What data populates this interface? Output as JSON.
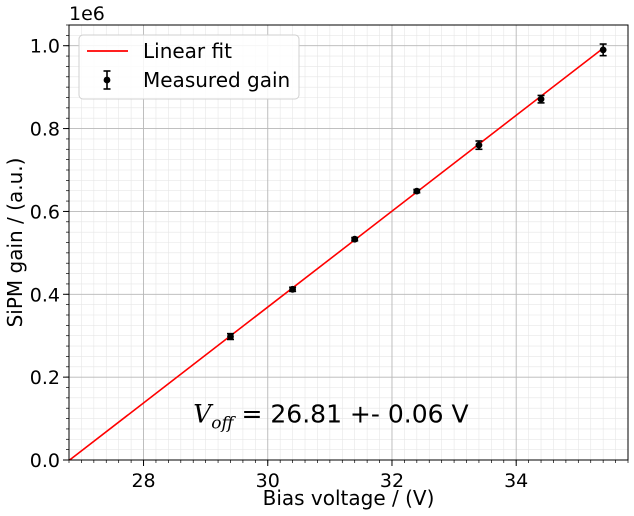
{
  "chart_data": {
    "type": "scatter",
    "title": "",
    "xlabel": "Bias voltage / (V)",
    "ylabel": "SiPM gain / (a.u.)",
    "y_scale_label": "1e6",
    "xlim": [
      26.8,
      35.8
    ],
    "ylim": [
      0.0,
      1.05
    ],
    "x_ticks": [
      28,
      30,
      32,
      34
    ],
    "x_tick_labels": [
      "28",
      "30",
      "32",
      "34"
    ],
    "y_ticks": [
      0.0,
      0.2,
      0.4,
      0.6,
      0.8,
      1.0
    ],
    "y_tick_labels": [
      "0.0",
      "0.2",
      "0.4",
      "0.6",
      "0.8",
      "1.0"
    ],
    "grid": true,
    "minor_grid": true,
    "legend_position": "top-left",
    "series": [
      {
        "name": "Linear fit",
        "kind": "line",
        "color": "#ff0000",
        "x": [
          26.81,
          35.4
        ],
        "y": [
          0.0,
          0.994
        ]
      },
      {
        "name": "Measured gain",
        "kind": "errorbar",
        "color": "#000000",
        "x": [
          29.4,
          30.4,
          31.4,
          32.4,
          33.4,
          34.4,
          35.4
        ],
        "y": [
          0.298,
          0.412,
          0.533,
          0.649,
          0.76,
          0.871,
          0.99
        ],
        "yerr": [
          0.007,
          0.005,
          0.004,
          0.004,
          0.01,
          0.009,
          0.014
        ]
      }
    ],
    "annotation": {
      "symbol": "V",
      "subscript": "off",
      "text": " = 26.81 +- 0.06 V",
      "x": 28.8,
      "y": 0.11
    }
  }
}
